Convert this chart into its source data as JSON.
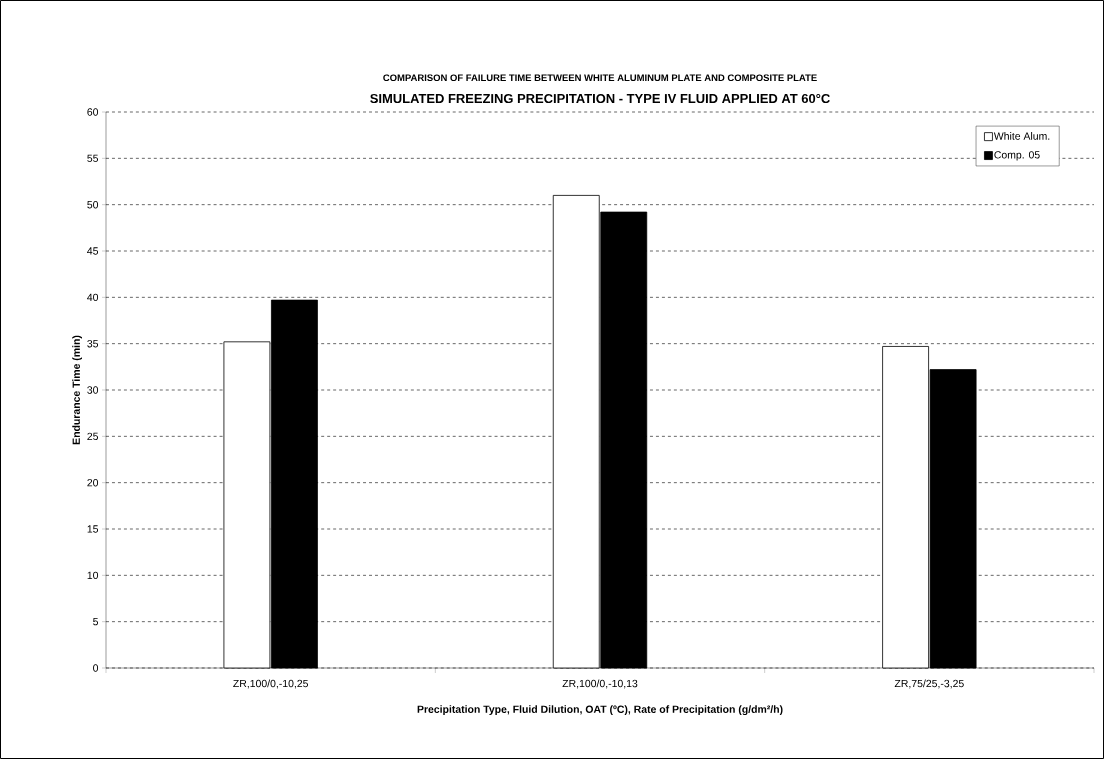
{
  "chart_data": {
    "type": "bar",
    "title": "COMPARISON OF FAILURE TIME BETWEEN WHITE ALUMINUM PLATE AND COMPOSITE PLATE",
    "subtitle": "SIMULATED FREEZING PRECIPITATION - TYPE IV FLUID APPLIED AT 60°C",
    "xlabel": "Precipitation Type, Fluid Dilution, OAT (ºC), Rate of Precipitation (g/dm²/h)",
    "ylabel": "Endurance Time (min)",
    "categories": [
      "ZR,100/0,-10,25",
      "ZR,100/0,-10,13",
      "ZR,75/25,-3,25"
    ],
    "series": [
      {
        "name": "White Alum.",
        "color": "#ffffff",
        "values": [
          35.2,
          51.0,
          34.7
        ]
      },
      {
        "name": "Comp. 05",
        "color": "#000000",
        "values": [
          39.7,
          49.2,
          32.2
        ]
      }
    ],
    "ylim": [
      0,
      60
    ],
    "yticks": [
      0,
      5,
      10,
      15,
      20,
      25,
      30,
      35,
      40,
      45,
      50,
      55,
      60
    ],
    "grid": "y",
    "legend": "top right"
  }
}
